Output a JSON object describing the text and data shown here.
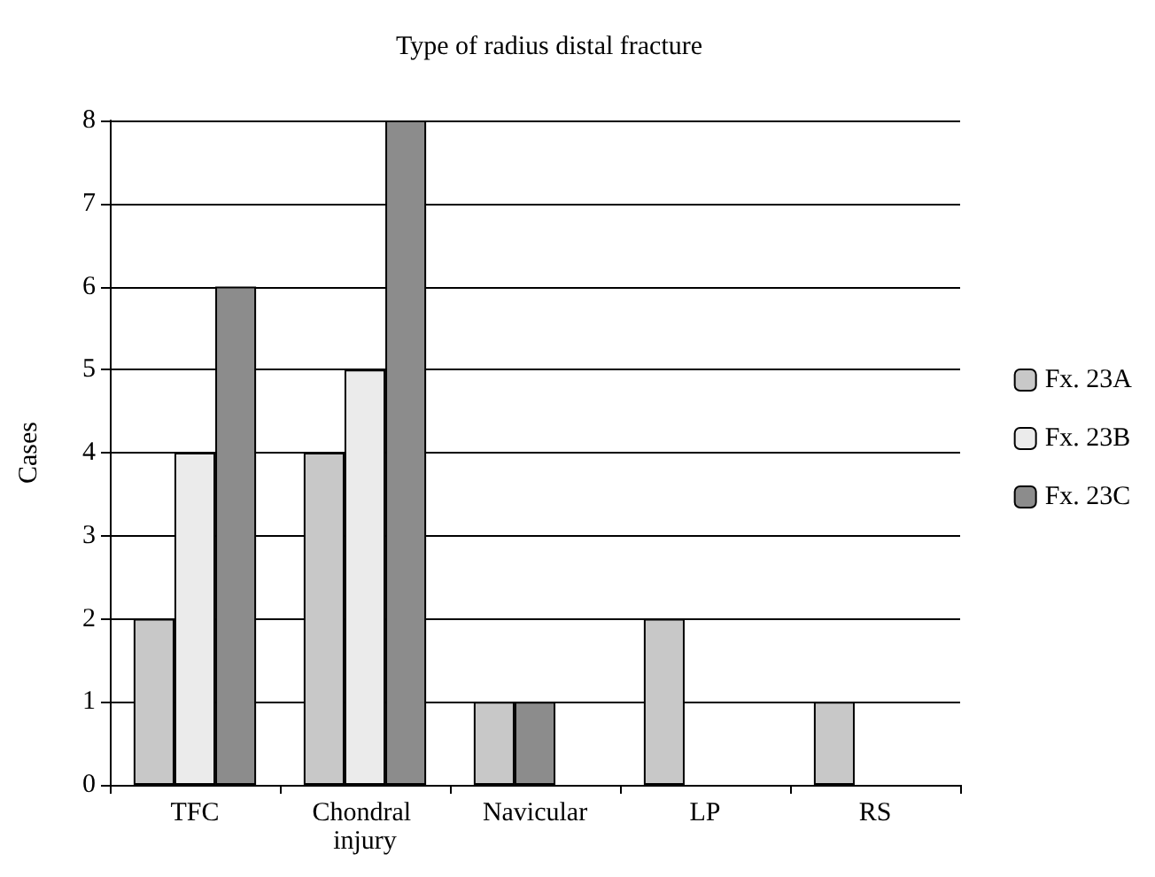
{
  "chart_data": {
    "type": "bar",
    "title": "Type of radius distal fracture",
    "ylabel": "Cases",
    "categories": [
      "TFC",
      "Chondral injury",
      "Navicular",
      "LP",
      "RS"
    ],
    "series": [
      {
        "name": "Fx. 23A",
        "color": "#c8c8c8",
        "values": [
          2,
          4,
          1,
          2,
          1
        ]
      },
      {
        "name": "Fx. 23B",
        "color": "#ebebeb",
        "colors": [
          "#ebebeb",
          "#ebebeb",
          "#8c8c8c",
          "#ebebeb",
          "#ebebeb"
        ],
        "values": [
          4,
          5,
          1,
          0,
          0
        ]
      },
      {
        "name": "Fx. 23C",
        "color": "#8c8c8c",
        "values": [
          6,
          8,
          0,
          0,
          0
        ]
      }
    ],
    "ylim": [
      0,
      8
    ],
    "yticks": [
      0,
      1,
      2,
      3,
      4,
      5,
      6,
      7,
      8
    ],
    "grid": "y",
    "legend": "right"
  }
}
